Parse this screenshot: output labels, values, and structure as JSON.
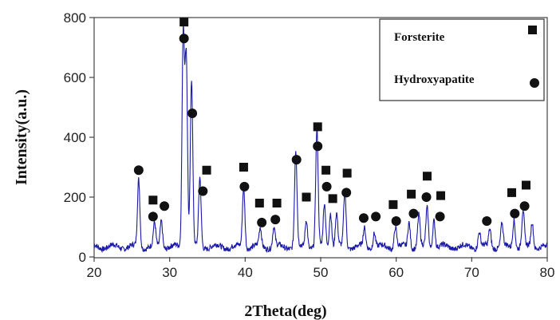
{
  "chart_data": {
    "type": "line",
    "title": "",
    "xlabel": "2Theta(deg)",
    "ylabel": "Intensity(a.u.)",
    "xlim": [
      20,
      80
    ],
    "ylim": [
      0,
      800
    ],
    "x_ticks": [
      "20",
      "30",
      "40",
      "50",
      "60",
      "70",
      "80"
    ],
    "y_ticks": [
      "0",
      "200",
      "400",
      "600",
      "800"
    ],
    "grid": false,
    "line_color": "#1a1aa6",
    "peaks": [
      [
        25.9,
        225
      ],
      [
        28.0,
        75
      ],
      [
        28.9,
        90
      ],
      [
        31.8,
        720
      ],
      [
        32.2,
        640
      ],
      [
        32.9,
        560
      ],
      [
        34.0,
        230
      ],
      [
        39.8,
        205
      ],
      [
        42.0,
        60
      ],
      [
        43.8,
        65
      ],
      [
        46.7,
        320
      ],
      [
        48.1,
        95
      ],
      [
        49.5,
        390
      ],
      [
        50.5,
        145
      ],
      [
        51.3,
        120
      ],
      [
        52.1,
        110
      ],
      [
        53.2,
        185
      ],
      [
        55.8,
        60
      ],
      [
        57.1,
        50
      ],
      [
        59.9,
        70
      ],
      [
        61.7,
        85
      ],
      [
        63.0,
        105
      ],
      [
        64.1,
        130
      ],
      [
        65.0,
        95
      ],
      [
        71.0,
        50
      ],
      [
        72.4,
        60
      ],
      [
        74.0,
        75
      ],
      [
        75.6,
        95
      ],
      [
        76.8,
        120
      ],
      [
        78.0,
        85
      ]
    ],
    "legend": {
      "position": "top-right",
      "entries": [
        {
          "label": "Forsterite",
          "marker": "square"
        },
        {
          "label": "Hydroxyapatite",
          "marker": "circle"
        }
      ]
    },
    "markers": [
      {
        "phase": "Hydroxyapatite",
        "x": 25.9,
        "y": 290
      },
      {
        "phase": "Forsterite",
        "x": 27.8,
        "y": 190
      },
      {
        "phase": "Hydroxyapatite",
        "x": 27.8,
        "y": 135
      },
      {
        "phase": "Hydroxyapatite",
        "x": 29.3,
        "y": 170
      },
      {
        "phase": "Forsterite",
        "x": 31.9,
        "y": 785
      },
      {
        "phase": "Hydroxyapatite",
        "x": 31.9,
        "y": 730
      },
      {
        "phase": "Hydroxyapatite",
        "x": 33.0,
        "y": 480
      },
      {
        "phase": "Forsterite",
        "x": 34.9,
        "y": 290
      },
      {
        "phase": "Hydroxyapatite",
        "x": 34.4,
        "y": 220
      },
      {
        "phase": "Forsterite",
        "x": 39.8,
        "y": 300
      },
      {
        "phase": "Hydroxyapatite",
        "x": 39.9,
        "y": 235
      },
      {
        "phase": "Forsterite",
        "x": 41.9,
        "y": 180
      },
      {
        "phase": "Hydroxyapatite",
        "x": 42.2,
        "y": 115
      },
      {
        "phase": "Forsterite",
        "x": 44.2,
        "y": 180
      },
      {
        "phase": "Hydroxyapatite",
        "x": 44.0,
        "y": 125
      },
      {
        "phase": "Hydroxyapatite",
        "x": 46.8,
        "y": 325
      },
      {
        "phase": "Forsterite",
        "x": 48.1,
        "y": 200
      },
      {
        "phase": "Forsterite",
        "x": 49.6,
        "y": 435
      },
      {
        "phase": "Hydroxyapatite",
        "x": 49.6,
        "y": 370
      },
      {
        "phase": "Forsterite",
        "x": 50.7,
        "y": 290
      },
      {
        "phase": "Hydroxyapatite",
        "x": 50.8,
        "y": 235
      },
      {
        "phase": "Forsterite",
        "x": 51.6,
        "y": 195
      },
      {
        "phase": "Forsterite",
        "x": 53.5,
        "y": 280
      },
      {
        "phase": "Hydroxyapatite",
        "x": 53.4,
        "y": 215
      },
      {
        "phase": "Hydroxyapatite",
        "x": 55.7,
        "y": 130
      },
      {
        "phase": "Hydroxyapatite",
        "x": 57.3,
        "y": 135
      },
      {
        "phase": "Forsterite",
        "x": 59.6,
        "y": 175
      },
      {
        "phase": "Hydroxyapatite",
        "x": 60.0,
        "y": 120
      },
      {
        "phase": "Forsterite",
        "x": 62.0,
        "y": 210
      },
      {
        "phase": "Hydroxyapatite",
        "x": 62.3,
        "y": 145
      },
      {
        "phase": "Forsterite",
        "x": 64.1,
        "y": 270
      },
      {
        "phase": "Hydroxyapatite",
        "x": 64.0,
        "y": 200
      },
      {
        "phase": "Forsterite",
        "x": 65.9,
        "y": 205
      },
      {
        "phase": "Hydroxyapatite",
        "x": 65.8,
        "y": 135
      },
      {
        "phase": "Hydroxyapatite",
        "x": 72.0,
        "y": 120
      },
      {
        "phase": "Forsterite",
        "x": 75.3,
        "y": 215
      },
      {
        "phase": "Hydroxyapatite",
        "x": 75.7,
        "y": 145
      },
      {
        "phase": "Forsterite",
        "x": 77.2,
        "y": 240
      },
      {
        "phase": "Hydroxyapatite",
        "x": 77.0,
        "y": 170
      }
    ]
  }
}
